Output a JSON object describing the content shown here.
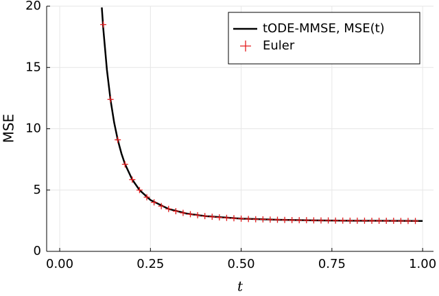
{
  "chart_data": {
    "type": "line",
    "xlabel": "t",
    "ylabel": "MSE",
    "xlim": [
      -0.036,
      1.03
    ],
    "ylim": [
      0,
      20
    ],
    "xticks": [
      {
        "value": 0,
        "label": "0.00"
      },
      {
        "value": 0.25,
        "label": "0.25"
      },
      {
        "value": 0.5,
        "label": "0.50"
      },
      {
        "value": 0.75,
        "label": "0.75"
      },
      {
        "value": 1,
        "label": "1.00"
      }
    ],
    "yticks": [
      0,
      5,
      10,
      15,
      20
    ],
    "grid": true,
    "legend": "upper right",
    "series": [
      {
        "name": "tODE-MMSE, MSE(t)",
        "color": "#000000",
        "mark": "line",
        "x": [
          0.116,
          0.12,
          0.13,
          0.14,
          0.15,
          0.16,
          0.17,
          0.18,
          0.2,
          0.22,
          0.25,
          0.3,
          0.35,
          0.4,
          0.5,
          0.6,
          0.7,
          0.8,
          0.9,
          1.0
        ],
        "values": [
          19.9,
          18.19,
          14.83,
          12.36,
          10.51,
          9.09,
          7.99,
          7.11,
          5.85,
          5.0,
          4.19,
          3.46,
          3.08,
          2.88,
          2.67,
          2.58,
          2.53,
          2.5,
          2.49,
          2.48
        ]
      },
      {
        "name": "Euler",
        "color": "#e31a1c",
        "mark": "plus",
        "x": [
          0.12,
          0.14,
          0.16,
          0.18,
          0.2,
          0.22,
          0.24,
          0.26,
          0.28,
          0.3,
          0.32,
          0.34,
          0.36,
          0.38,
          0.4,
          0.42,
          0.44,
          0.46,
          0.48,
          0.5,
          0.52,
          0.54,
          0.56,
          0.58,
          0.6,
          0.62,
          0.64,
          0.66,
          0.68,
          0.7,
          0.72,
          0.74,
          0.76,
          0.78,
          0.8,
          0.82,
          0.84,
          0.86,
          0.88,
          0.9,
          0.92,
          0.94,
          0.96,
          0.98
        ],
        "values": [
          18.5,
          12.4,
          9.1,
          7.1,
          5.85,
          5.0,
          4.42,
          4.0,
          3.69,
          3.46,
          3.28,
          3.14,
          3.03,
          2.95,
          2.88,
          2.82,
          2.77,
          2.73,
          2.7,
          2.67,
          2.64,
          2.62,
          2.61,
          2.59,
          2.58,
          2.56,
          2.55,
          2.54,
          2.54,
          2.53,
          2.52,
          2.52,
          2.51,
          2.51,
          2.5,
          2.5,
          2.5,
          2.49,
          2.49,
          2.49,
          2.49,
          2.48,
          2.48,
          2.48
        ]
      }
    ]
  }
}
